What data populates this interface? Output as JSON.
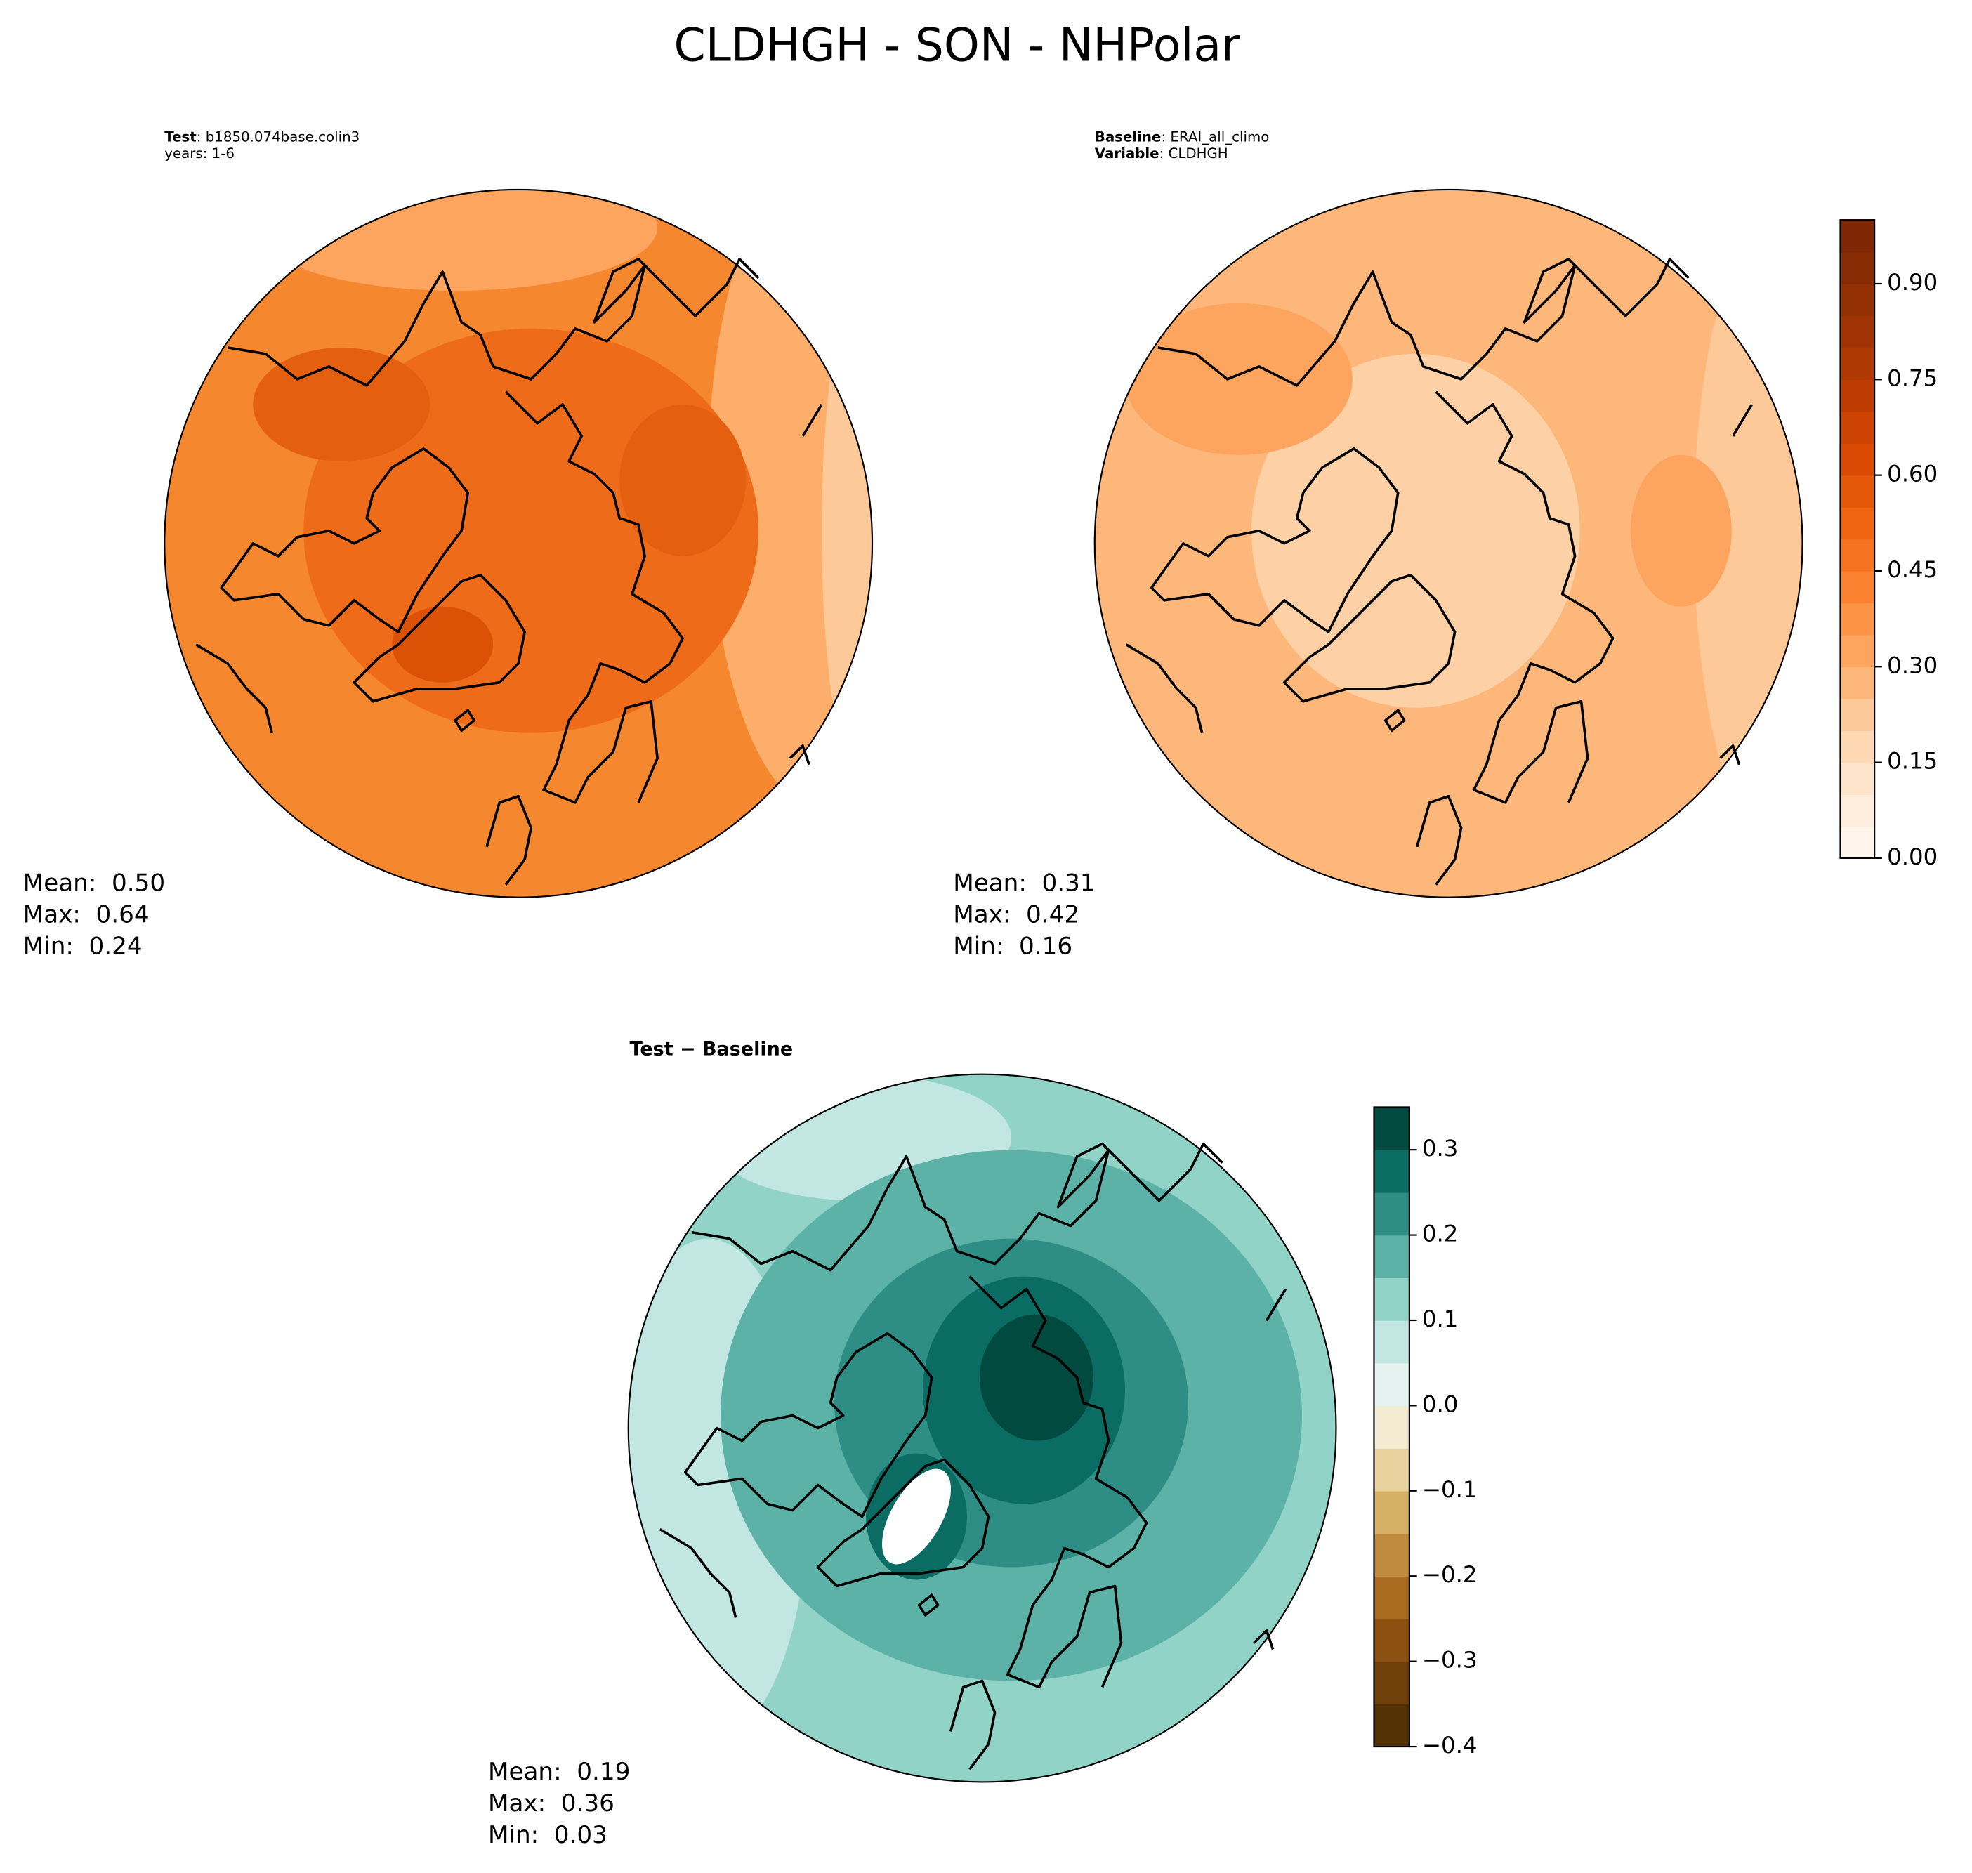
{
  "title": "CLDHGH - SON - NHPolar",
  "panels": [
    {
      "header": [
        {
          "bold": "Test",
          "text": ": b1850.074base.colin3"
        },
        {
          "text": "years: 1-6"
        }
      ],
      "stats": [
        {
          "label": "Mean:",
          "value": "0.50"
        },
        {
          "label": "Max:",
          "value": "0.64"
        },
        {
          "label": "Min:",
          "value": "0.24"
        }
      ]
    },
    {
      "header": [
        {
          "bold": "Baseline",
          "text": ": ERAI_all_climo"
        },
        {
          "bold": "Variable",
          "text": ": CLDHGH"
        }
      ],
      "stats": [
        {
          "label": "Mean:",
          "value": "0.31"
        },
        {
          "label": "Max:",
          "value": "0.42"
        },
        {
          "label": "Min:",
          "value": "0.16"
        }
      ]
    },
    {
      "title": "Test − Baseline",
      "stats": [
        {
          "label": "Mean:",
          "value": "0.19"
        },
        {
          "label": "Max:",
          "value": "0.36"
        },
        {
          "label": "Min:",
          "value": "0.03"
        }
      ]
    }
  ],
  "colorbars": [
    {
      "lim": [
        0,
        1.0
      ],
      "ticks": [
        {
          "value": 0,
          "label": "0.00"
        },
        0.15,
        {
          "value": 0.3,
          "label": "0.30"
        },
        0.45,
        {
          "value": 0.6,
          "label": "0.60"
        },
        0.75,
        {
          "value": 0.9,
          "label": "0.90"
        }
      ],
      "colors": [
        "#fff5eb",
        "#feeddc",
        "#fee4ca",
        "#fdd8b3",
        "#fdc998",
        "#fdb77b",
        "#fda45e",
        "#fd9345",
        "#fb8230",
        "#f5721f",
        "#ee6411",
        "#e55709",
        "#db4a03",
        "#cc4302",
        "#be3c02",
        "#af3803",
        "#a03303",
        "#922f03",
        "#872b04",
        "#7f2704"
      ]
    },
    {
      "lim": [
        -0.4,
        0.35
      ],
      "ticks": [
        {
          "value": -0.4,
          "label": "−0.4"
        },
        {
          "value": -0.3,
          "label": "−0.3"
        },
        {
          "value": -0.2,
          "label": "−0.2"
        },
        {
          "value": -0.1,
          "label": "−0.1"
        },
        {
          "value": 0,
          "label": "0.0"
        },
        0.1,
        0.2,
        0.3
      ],
      "colors": [
        "#543005",
        "#6e400a",
        "#8c5111",
        "#a96b20",
        "#c08b3f",
        "#d6b064",
        "#e9d29e",
        "#f4ecd2",
        "#e6f2f0",
        "#c2e7e2",
        "#92d3c8",
        "#5db2a7",
        "#2e8e85",
        "#0a6c62",
        "#014a3f"
      ]
    }
  ]
}
